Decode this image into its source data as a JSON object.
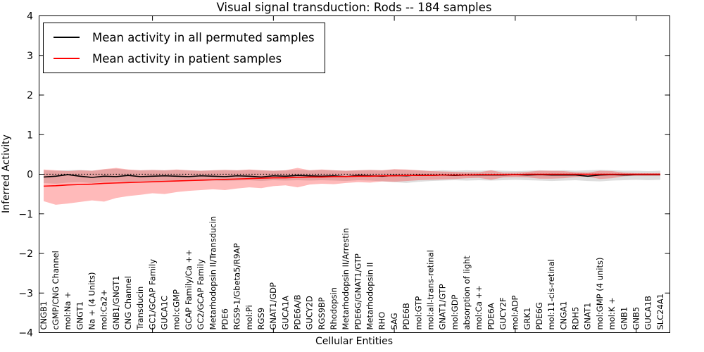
{
  "figure": {
    "title": "Visual signal transduction: Rods -- 184 samples",
    "xlabel": "Cellular Entities",
    "ylabel": "Inferred Activity"
  },
  "chart_data": {
    "type": "line",
    "title": "Visual signal transduction: Rods -- 184 samples",
    "xlabel": "Cellular Entities",
    "ylabel": "Inferred Activity",
    "ylim": [
      -4,
      4
    ],
    "yticks": [
      -4,
      -3,
      -2,
      -1,
      0,
      1,
      2,
      3,
      4
    ],
    "grid": false,
    "legend_position": "upper left",
    "reference_line": {
      "y": 0,
      "style": "dotted",
      "color": "#000000"
    },
    "categories": [
      "CNGB1",
      "cGMP/CNG Channel",
      "mol:Na +",
      "GNGT1",
      "Na + (4 Units)",
      "mol:Ca2+",
      "GNB1/GNGT1",
      "CNG Channel",
      "Transducin",
      "GC1/GCAP Family",
      "GUCA1C",
      "mol:cGMP",
      "GCAP Family/Ca ++",
      "GC2/GCAP Family",
      "Metarhodopsin II/Transducin",
      "PDE6",
      "RGS9-1/Gbeta5/R9AP",
      "mol:Pi",
      "RGS9",
      "GNAT1/GDP",
      "GUCA1A",
      "PDE6A/B",
      "GUCY2D",
      "RGS9BP",
      "Rhodopsin",
      "Metarhodopsin II/Arrestin",
      "PDE6G/GNAT1/GTP",
      "Metarhodopsin II",
      "RHO",
      "SAG",
      "PDE6B",
      "mol:GTP",
      "mol:all-trans-retinal",
      "GNAT1/GTP",
      "mol:GDP",
      "absorption of light",
      "mol:Ca ++",
      "PDE6A",
      "GUCY2F",
      "mol:ADP",
      "GRK1",
      "PDE6G",
      "mol:11-cis-retinal",
      "CNGA1",
      "RDH5",
      "GNAT1",
      "mol:GMP (4 units)",
      "mol:K +",
      "GNB1",
      "GNB5",
      "GUCA1B",
      "SLC24A1"
    ],
    "series": [
      {
        "key": "permuted",
        "name": "Mean activity in all permuted samples",
        "color": "#000000",
        "band_color": "rgba(0,0,0,0.13)",
        "values": [
          -0.07,
          -0.05,
          -0.01,
          -0.05,
          -0.08,
          -0.05,
          -0.06,
          -0.03,
          -0.06,
          -0.05,
          -0.04,
          -0.05,
          -0.06,
          -0.04,
          -0.05,
          -0.06,
          -0.04,
          -0.05,
          -0.07,
          -0.04,
          -0.05,
          -0.03,
          -0.04,
          -0.05,
          -0.04,
          -0.06,
          -0.03,
          -0.04,
          -0.05,
          -0.03,
          -0.04,
          -0.02,
          -0.03,
          -0.02,
          -0.03,
          -0.02,
          -0.02,
          -0.02,
          -0.02,
          -0.01,
          -0.02,
          -0.01,
          -0.02,
          -0.02,
          -0.02,
          -0.05,
          -0.02,
          -0.01,
          -0.02,
          -0.01,
          -0.01,
          -0.01
        ],
        "band_upper": [
          0.1,
          0.09,
          0.1,
          0.11,
          0.09,
          0.12,
          0.14,
          0.11,
          0.1,
          0.11,
          0.1,
          0.11,
          0.1,
          0.09,
          0.1,
          0.11,
          0.1,
          0.11,
          0.1,
          0.09,
          0.1,
          0.11,
          0.1,
          0.11,
          0.1,
          0.09,
          0.1,
          0.11,
          0.1,
          0.12,
          0.11,
          0.1,
          0.09,
          0.1,
          0.09,
          0.1,
          0.09,
          0.1,
          0.09,
          0.08,
          0.09,
          0.1,
          0.09,
          0.1,
          0.09,
          0.1,
          0.11,
          0.1,
          0.09,
          0.09,
          0.08,
          0.09
        ],
        "band_lower": [
          -0.22,
          -0.24,
          -0.21,
          -0.2,
          -0.22,
          -0.19,
          -0.18,
          -0.19,
          -0.18,
          -0.17,
          -0.18,
          -0.17,
          -0.16,
          -0.17,
          -0.16,
          -0.17,
          -0.16,
          -0.15,
          -0.17,
          -0.15,
          -0.16,
          -0.15,
          -0.16,
          -0.15,
          -0.16,
          -0.17,
          -0.15,
          -0.16,
          -0.18,
          -0.2,
          -0.22,
          -0.19,
          -0.17,
          -0.16,
          -0.15,
          -0.16,
          -0.15,
          -0.16,
          -0.15,
          -0.14,
          -0.15,
          -0.16,
          -0.17,
          -0.16,
          -0.15,
          -0.17,
          -0.18,
          -0.16,
          -0.15,
          -0.14,
          -0.15,
          -0.14
        ]
      },
      {
        "key": "patient",
        "name": "Mean activity in patient samples",
        "color": "#ff0000",
        "band_color": "rgba(255,0,0,0.27)",
        "values": [
          -0.3,
          -0.29,
          -0.27,
          -0.26,
          -0.25,
          -0.23,
          -0.22,
          -0.21,
          -0.2,
          -0.19,
          -0.18,
          -0.17,
          -0.16,
          -0.15,
          -0.14,
          -0.13,
          -0.12,
          -0.11,
          -0.1,
          -0.09,
          -0.09,
          -0.08,
          -0.07,
          -0.07,
          -0.06,
          -0.06,
          -0.05,
          -0.05,
          -0.04,
          -0.04,
          -0.03,
          -0.03,
          -0.03,
          -0.02,
          -0.02,
          -0.02,
          -0.01,
          -0.01,
          -0.01,
          -0.01,
          0.0,
          0.0,
          0.0,
          0.0,
          0.0,
          0.0,
          0.0,
          0.0,
          0.0,
          0.0,
          0.0,
          0.0
        ],
        "band_upper": [
          0.12,
          0.1,
          0.08,
          0.1,
          0.09,
          0.13,
          0.16,
          0.12,
          0.1,
          0.11,
          0.1,
          0.12,
          0.1,
          0.09,
          0.1,
          0.11,
          0.1,
          0.12,
          0.1,
          0.09,
          0.1,
          0.16,
          0.1,
          0.12,
          0.1,
          0.09,
          0.1,
          0.11,
          0.1,
          0.13,
          0.12,
          0.1,
          0.08,
          0.07,
          0.06,
          0.05,
          0.05,
          0.1,
          0.04,
          0.04,
          0.06,
          0.09,
          0.09,
          0.08,
          0.05,
          0.04,
          0.09,
          0.08,
          0.04,
          0.03,
          0.03,
          0.03
        ],
        "band_lower": [
          -0.68,
          -0.77,
          -0.74,
          -0.7,
          -0.66,
          -0.69,
          -0.6,
          -0.55,
          -0.52,
          -0.48,
          -0.5,
          -0.45,
          -0.42,
          -0.4,
          -0.38,
          -0.4,
          -0.36,
          -0.33,
          -0.35,
          -0.3,
          -0.28,
          -0.33,
          -0.26,
          -0.24,
          -0.25,
          -0.22,
          -0.2,
          -0.21,
          -0.18,
          -0.19,
          -0.17,
          -0.15,
          -0.14,
          -0.13,
          -0.12,
          -0.1,
          -0.09,
          -0.14,
          -0.08,
          -0.07,
          -0.08,
          -0.11,
          -0.11,
          -0.1,
          -0.07,
          -0.06,
          -0.12,
          -0.1,
          -0.05,
          -0.04,
          -0.04,
          -0.04
        ]
      }
    ]
  }
}
